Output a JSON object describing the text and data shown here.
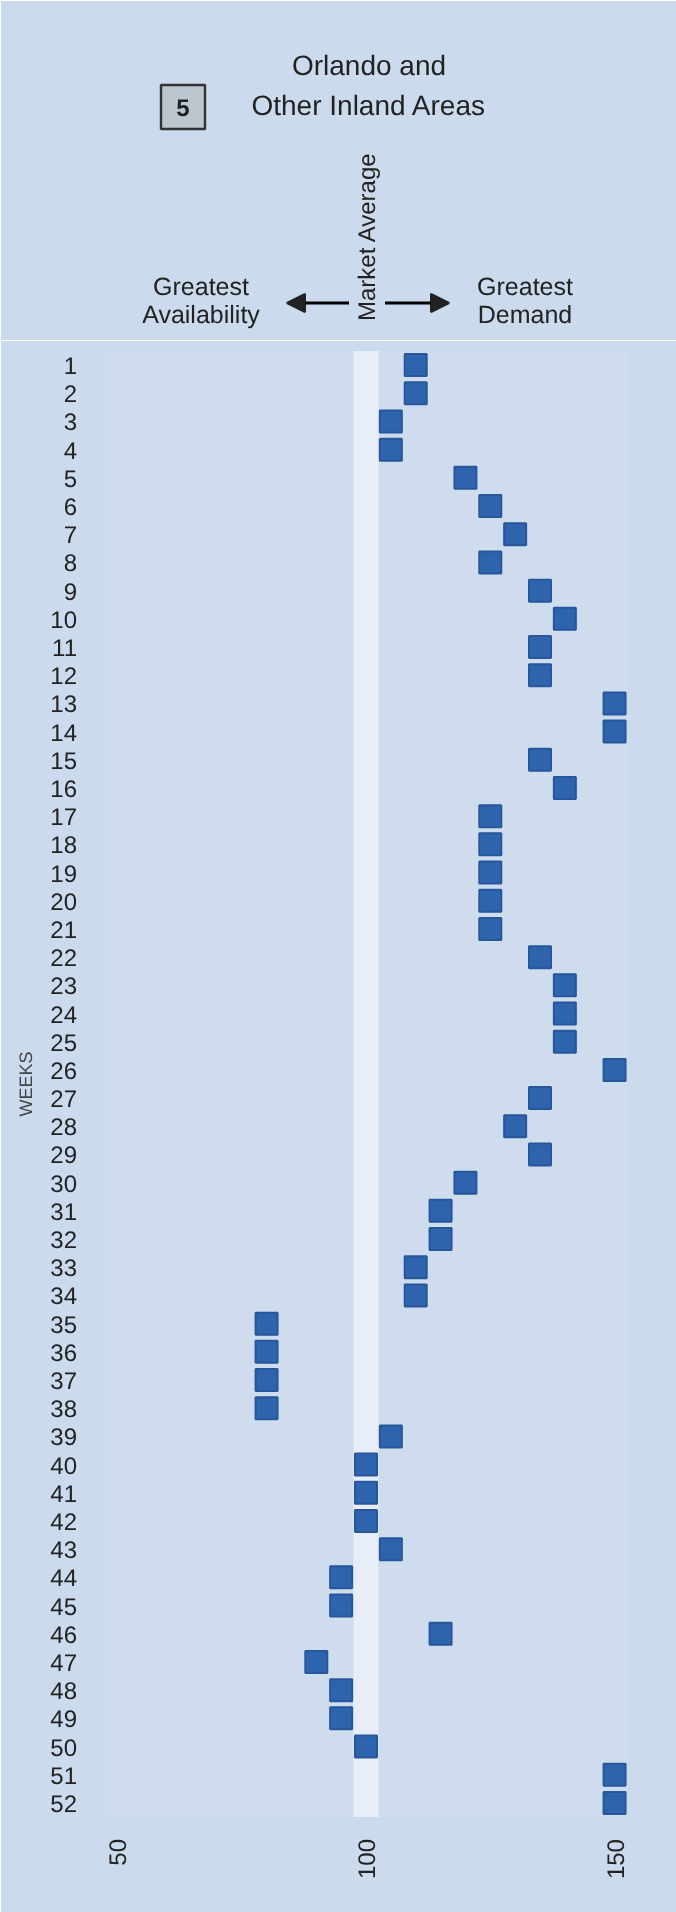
{
  "chart_data": {
    "type": "scatter",
    "title": "Orlando and\nOther Inland Areas",
    "ylabel": "WEEKS",
    "annotations": [
      "5",
      "Greatest\nAvailability",
      "Greatest\nDemand"
    ],
    "series": [
      {
        "color": "#2e64ae",
        "x": [
          110,
          110,
          105,
          105,
          120,
          125,
          130,
          125,
          135,
          140,
          135,
          135,
          150,
          150,
          135,
          140,
          125,
          125,
          125,
          125,
          125,
          135,
          140,
          140,
          140,
          150,
          135,
          130,
          135,
          120,
          115,
          115,
          110,
          110,
          80,
          80,
          80,
          80,
          105,
          100,
          100,
          100,
          105,
          95,
          95,
          115,
          90,
          95,
          95,
          100,
          150,
          150
        ],
        "values": [
          1,
          2,
          3,
          4,
          5,
          6,
          7,
          8,
          9,
          10,
          11,
          12,
          13,
          14,
          15,
          16,
          17,
          18,
          19,
          20,
          21,
          22,
          23,
          24,
          25,
          26,
          27,
          28,
          29,
          30,
          31,
          32,
          33,
          34,
          35,
          36,
          37,
          38,
          39,
          40,
          41,
          42,
          43,
          44,
          45,
          46,
          47,
          48,
          49,
          50,
          51,
          52
        ]
      }
    ],
    "marker": "square",
    "xlim": [
      47.5,
      152.5
    ],
    "ylim": [
      52.5,
      0.5
    ],
    "xticks": [
      50,
      100,
      150
    ],
    "yticks": [
      1,
      2,
      3,
      4,
      5,
      6,
      7,
      8,
      9,
      10,
      11,
      12,
      13,
      14,
      15,
      16,
      17,
      18,
      19,
      20,
      21,
      22,
      23,
      24,
      25,
      26,
      27,
      28,
      29,
      30,
      31,
      32,
      33,
      34,
      35,
      36,
      37,
      38,
      39,
      40,
      41,
      42,
      43,
      44,
      45,
      46,
      47,
      48,
      49,
      50,
      51,
      52
    ],
    "bands": [
      {
        "axis": "x",
        "from": 97.5,
        "to": 102.5,
        "label": "Market Average",
        "color": "#e8eef8"
      }
    ]
  }
}
